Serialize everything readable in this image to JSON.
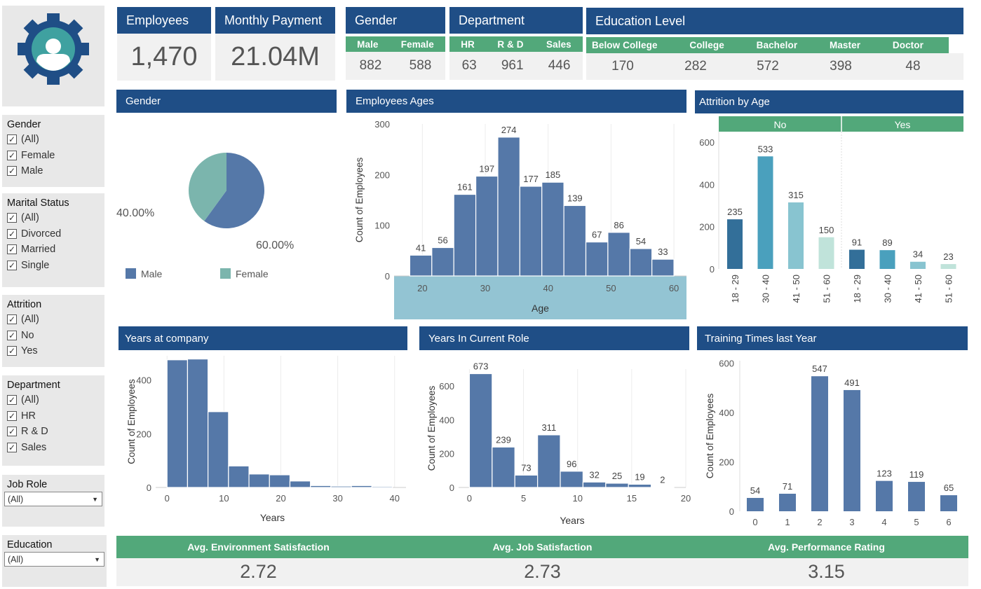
{
  "kpis": {
    "employees": {
      "label": "Employees",
      "value": "1,470"
    },
    "monthly_payment": {
      "label": "Monthly Payment",
      "value": "21.04M"
    }
  },
  "gender_card": {
    "title": "Gender",
    "labels": [
      "Male",
      "Female"
    ],
    "values": [
      "882",
      "588"
    ]
  },
  "department_card": {
    "title": "Department",
    "labels": [
      "HR",
      "R & D",
      "Sales"
    ],
    "values": [
      "63",
      "961",
      "446"
    ]
  },
  "education_card": {
    "title": "Education Level",
    "labels": [
      "Below College",
      "College",
      "Bachelor",
      "Master",
      "Doctor"
    ],
    "values": [
      "170",
      "282",
      "572",
      "398",
      "48"
    ]
  },
  "filters": {
    "gender": {
      "title": "Gender",
      "options": [
        "(All)",
        "Female",
        "Male"
      ]
    },
    "marital": {
      "title": "Marital Status",
      "options": [
        "(All)",
        "Divorced",
        "Married",
        "Single"
      ]
    },
    "attrition": {
      "title": "Attrition",
      "options": [
        "(All)",
        "No",
        "Yes"
      ]
    },
    "department": {
      "title": "Department",
      "options": [
        "(All)",
        "HR",
        "R & D",
        "Sales"
      ]
    },
    "job_role": {
      "title": "Job Role",
      "selected": "(All)"
    },
    "education": {
      "title": "Education",
      "selected": "(All)"
    }
  },
  "check_mark": "✓",
  "dropdown_arrow": "▼",
  "icons": {
    "logo": "gear-user-icon"
  },
  "colors": {
    "header": "#1f4e86",
    "green": "#52a87a",
    "bar": "#5578a8",
    "pie_female": "#7bb5ad",
    "age_axis_band": "#93c4d3"
  },
  "avg": {
    "env": {
      "label": "Avg. Environment Satisfaction",
      "value": "2.72"
    },
    "job": {
      "label": "Avg. Job Satisfaction",
      "value": "2.73"
    },
    "perf": {
      "label": "Avg. Performance Rating",
      "value": "3.15"
    }
  },
  "chart_data": [
    {
      "id": "gender_pie",
      "type": "pie",
      "title": "Gender",
      "labels": [
        "Male",
        "Female"
      ],
      "values": [
        60,
        40
      ],
      "slice_labels": [
        "60.00%",
        "40.00%"
      ],
      "legend": [
        "Male",
        "Female"
      ],
      "colors": [
        "#5578a8",
        "#7bb5ad"
      ]
    },
    {
      "id": "ages",
      "type": "bar",
      "title": "Employees Ages",
      "xlabel": "Age",
      "ylabel": "Count of Employees",
      "bin_starts": [
        18,
        21.5,
        25,
        28.5,
        32,
        35.5,
        39,
        42.5,
        46,
        49.5,
        53,
        56.5
      ],
      "bin_width": 3.5,
      "values": [
        41,
        56,
        161,
        197,
        274,
        177,
        185,
        139,
        67,
        86,
        54,
        33
      ],
      "xlim": [
        15.5,
        62
      ],
      "xticks": [
        20,
        30,
        40,
        50,
        60
      ],
      "ylim": [
        0,
        300
      ],
      "yticks": [
        0,
        100,
        200,
        300
      ]
    },
    {
      "id": "attrition_age",
      "type": "bar",
      "title": "Attrition by Age",
      "facets": [
        "No",
        "Yes"
      ],
      "categories": [
        "18 - 29",
        "30 - 40",
        "41 - 50",
        "51 - 60"
      ],
      "series": [
        {
          "name": "No",
          "values": [
            235,
            533,
            315,
            150
          ]
        },
        {
          "name": "Yes",
          "values": [
            91,
            89,
            34,
            23
          ]
        }
      ],
      "colors": [
        "#336f99",
        "#4aa0bd",
        "#88c4d0",
        "#c0e3da"
      ],
      "ylim": [
        0,
        650
      ],
      "yticks": [
        0,
        200,
        400,
        600
      ]
    },
    {
      "id": "years_company",
      "type": "bar",
      "title": "Years at company",
      "xlabel": "Years",
      "ylabel": "Count of Employees",
      "bin_starts": [
        0,
        3.6,
        7.2,
        10.8,
        14.4,
        18,
        21.6,
        25.2,
        28.8,
        32.4,
        36
      ],
      "bin_width": 3.6,
      "values": [
        475,
        478,
        282,
        80,
        50,
        47,
        24,
        7,
        5,
        7,
        4
      ],
      "xlim": [
        -2,
        42
      ],
      "xticks": [
        0,
        10,
        20,
        30,
        40
      ],
      "ylim": [
        0,
        490
      ],
      "yticks": [
        0,
        200,
        400
      ]
    },
    {
      "id": "years_role",
      "type": "bar",
      "title": "Years In Current Role",
      "xlabel": "Years",
      "ylabel": "Count of Employees",
      "bin_starts": [
        0,
        2.1,
        4.2,
        6.3,
        8.4,
        10.5,
        12.6,
        14.7,
        16.8
      ],
      "bin_width": 2.1,
      "values": [
        673,
        239,
        73,
        311,
        96,
        32,
        25,
        19,
        2
      ],
      "xlim": [
        -1,
        20
      ],
      "xticks": [
        0,
        5,
        10,
        15,
        20
      ],
      "ylim": [
        0,
        700
      ],
      "yticks": [
        0,
        200,
        400,
        600
      ]
    },
    {
      "id": "training",
      "type": "bar",
      "title": "Training Times last Year",
      "ylabel": "Count of Employees",
      "categories": [
        "0",
        "1",
        "2",
        "3",
        "4",
        "5",
        "6"
      ],
      "values": [
        54,
        71,
        547,
        491,
        123,
        119,
        65
      ],
      "ylim": [
        0,
        610
      ],
      "yticks": [
        0,
        200,
        400,
        600
      ]
    }
  ]
}
